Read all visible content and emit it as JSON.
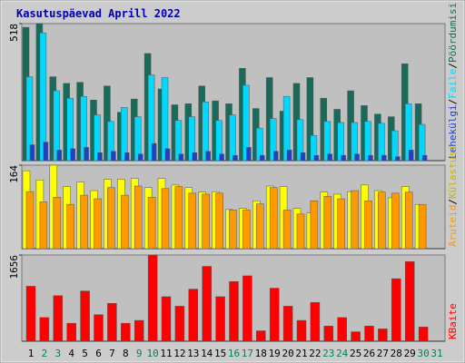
{
  "chart_data": [
    {
      "type": "bar",
      "title": "Kasutuspäevad Aprill 2022",
      "legend_separator": "/",
      "ylim": [
        0,
        518
      ],
      "yticks": [
        518
      ],
      "series": [
        {
          "name": "Pöördumisi",
          "color": "#186b5a",
          "values": [
            504,
            518,
            317,
            292,
            296,
            229,
            282,
            183,
            233,
            405,
            271,
            211,
            215,
            282,
            226,
            215,
            349,
            197,
            314,
            187,
            292,
            314,
            236,
            194,
            264,
            208,
            176,
            166,
            366,
            215,
            null
          ]
        },
        {
          "name": "Faile",
          "color": "#00d8ff",
          "values": [
            317,
            483,
            264,
            236,
            243,
            173,
            148,
            201,
            166,
            324,
            314,
            152,
            166,
            222,
            152,
            173,
            285,
            123,
            159,
            243,
            155,
            95,
            148,
            144,
            144,
            148,
            141,
            113,
            215,
            137,
            null
          ]
        },
        {
          "name": "Lehekülgi",
          "color": "#2040c8",
          "values": [
            60,
            70,
            40,
            45,
            50,
            30,
            35,
            30,
            25,
            65,
            45,
            25,
            30,
            35,
            25,
            20,
            50,
            20,
            35,
            40,
            30,
            20,
            25,
            20,
            25,
            20,
            20,
            15,
            40,
            20,
            null
          ]
        }
      ]
    },
    {
      "type": "bar",
      "legend_separator": "/",
      "ylim": [
        0,
        164
      ],
      "yticks": [
        164
      ],
      "series": [
        {
          "name": "Külastusi",
          "color": "#ffff00",
          "values": [
            153,
            135,
            164,
            122,
            131,
            114,
            136,
            136,
            138,
            120,
            138,
            125,
            120,
            111,
            112,
            77,
            79,
            94,
            123,
            122,
            79,
            70,
            111,
            107,
            112,
            125,
            114,
            100,
            122,
            87,
            null
          ]
        },
        {
          "name": "Aruteid",
          "color": "#ff9900",
          "values": [
            112,
            92,
            101,
            87,
            105,
            98,
            120,
            105,
            123,
            101,
            118,
            122,
            109,
            107,
            109,
            76,
            76,
            88,
            120,
            76,
            68,
            94,
            103,
            98,
            114,
            94,
            111,
            109,
            111,
            87,
            null
          ]
        }
      ]
    },
    {
      "type": "bar",
      "ylim": [
        0,
        1656
      ],
      "yticks": [
        1656
      ],
      "series": [
        {
          "name": "KBaite",
          "color": "#ff0000",
          "values": [
            1056,
            455,
            874,
            346,
            965,
            510,
            728,
            346,
            400,
            1656,
            855,
            673,
            1001,
            1438,
            855,
            1147,
            1256,
            200,
            1019,
            673,
            400,
            746,
            291,
            455,
            182,
            291,
            237,
            1201,
            1529,
            273,
            null
          ]
        }
      ],
      "categories": [
        "1",
        "2",
        "3",
        "4",
        "5",
        "6",
        "7",
        "8",
        "9",
        "10",
        "11",
        "12",
        "13",
        "14",
        "15",
        "16",
        "17",
        "18",
        "19",
        "20",
        "21",
        "22",
        "23",
        "24",
        "25",
        "26",
        "27",
        "28",
        "29",
        "30",
        "31"
      ],
      "category_colors": [
        "#000000",
        "#008060",
        "#008060",
        "#000000",
        "#000000",
        "#000000",
        "#000000",
        "#000000",
        "#008060",
        "#008060",
        "#000000",
        "#000000",
        "#000000",
        "#000000",
        "#000000",
        "#008060",
        "#008060",
        "#000000",
        "#000000",
        "#000000",
        "#000000",
        "#000000",
        "#008060",
        "#008060",
        "#000000",
        "#000000",
        "#000000",
        "#000000",
        "#000000",
        "#008060",
        "#008060"
      ]
    }
  ]
}
